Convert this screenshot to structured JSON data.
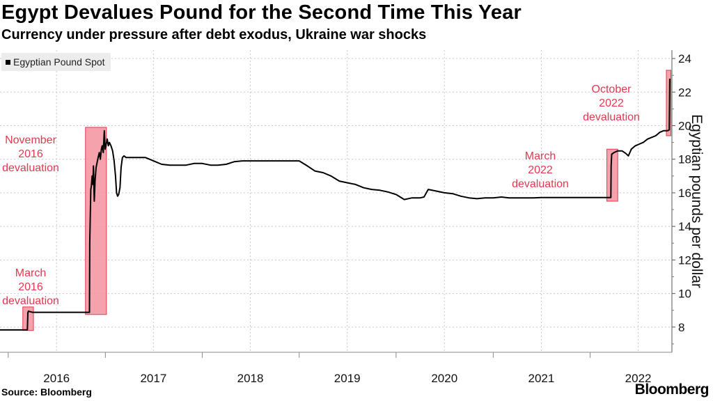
{
  "title": "Egypt Devalues Pound for the Second Time This Year",
  "subtitle": "Currency under pressure after debt exodus, Ukraine war shocks",
  "source": "Source: Bloomberg",
  "brand": "Bloomberg",
  "colors": {
    "line": "#000000",
    "highlight_fill": "#f4929e",
    "highlight_stroke": "#e0394f",
    "annotation": "#e0394f",
    "grid": "#c8c8c8",
    "legend_bg": "#ececec"
  },
  "chart_data": {
    "type": "line",
    "title": "Egypt Devalues Pound for the Second Time This Year",
    "subtitle": "Currency under pressure after debt exodus, Ukraine war shocks",
    "ylabel": "Egyptian pounds per dollar",
    "xlabel": "",
    "ylim": [
      6.5,
      24.5
    ],
    "xlim": [
      "2015-12-01",
      "2022-11-05"
    ],
    "y_ticks": [
      8,
      10,
      12,
      14,
      16,
      18,
      20,
      22,
      24
    ],
    "x_ticks": [
      {
        "label": "2016",
        "date": "2016-07-01"
      },
      {
        "label": "2017",
        "date": "2017-07-01"
      },
      {
        "label": "2018",
        "date": "2018-07-01"
      },
      {
        "label": "2019",
        "date": "2019-07-01"
      },
      {
        "label": "2020",
        "date": "2020-07-01"
      },
      {
        "label": "2021",
        "date": "2021-07-01"
      },
      {
        "label": "2022",
        "date": "2022-07-01"
      }
    ],
    "grid": true,
    "y_axis_position": "right",
    "legend": "top-left",
    "series": [
      {
        "name": "Egyptian Pound Spot",
        "points": [
          [
            "2015-12-01",
            7.83
          ],
          [
            "2016-02-01",
            7.83
          ],
          [
            "2016-03-13",
            7.83
          ],
          [
            "2016-03-15",
            8.85
          ],
          [
            "2016-03-17",
            8.95
          ],
          [
            "2016-04-01",
            8.88
          ],
          [
            "2016-05-01",
            8.88
          ],
          [
            "2016-06-01",
            8.88
          ],
          [
            "2016-07-01",
            8.88
          ],
          [
            "2016-08-01",
            8.88
          ],
          [
            "2016-09-01",
            8.88
          ],
          [
            "2016-10-01",
            8.88
          ],
          [
            "2016-11-02",
            8.88
          ],
          [
            "2016-11-03",
            13.0
          ],
          [
            "2016-11-07",
            16.2
          ],
          [
            "2016-11-09",
            16.4
          ],
          [
            "2016-11-12",
            17.0
          ],
          [
            "2016-11-15",
            16.5
          ],
          [
            "2016-11-17",
            17.6
          ],
          [
            "2016-11-20",
            15.5
          ],
          [
            "2016-11-23",
            16.7
          ],
          [
            "2016-11-27",
            17.5
          ],
          [
            "2016-12-02",
            17.9
          ],
          [
            "2016-12-06",
            18.2
          ],
          [
            "2016-12-09",
            18.4
          ],
          [
            "2016-12-13",
            18.0
          ],
          [
            "2016-12-17",
            18.6
          ],
          [
            "2016-12-20",
            18.8
          ],
          [
            "2016-12-24",
            18.4
          ],
          [
            "2016-12-28",
            19.7
          ],
          [
            "2016-12-31",
            18.6
          ],
          [
            "2017-01-04",
            18.9
          ],
          [
            "2017-01-08",
            19.2
          ],
          [
            "2017-01-12",
            18.8
          ],
          [
            "2017-01-16",
            19.0
          ],
          [
            "2017-01-22",
            18.8
          ],
          [
            "2017-01-28",
            18.5
          ],
          [
            "2017-02-03",
            17.9
          ],
          [
            "2017-02-08",
            17.0
          ],
          [
            "2017-02-12",
            16.0
          ],
          [
            "2017-02-16",
            15.8
          ],
          [
            "2017-02-20",
            15.9
          ],
          [
            "2017-02-25",
            16.3
          ],
          [
            "2017-03-01",
            17.5
          ],
          [
            "2017-03-06",
            18.1
          ],
          [
            "2017-03-12",
            18.2
          ],
          [
            "2017-03-20",
            18.1
          ],
          [
            "2017-04-01",
            18.1
          ],
          [
            "2017-05-01",
            18.1
          ],
          [
            "2017-06-01",
            18.1
          ],
          [
            "2017-07-01",
            17.9
          ],
          [
            "2017-08-01",
            17.7
          ],
          [
            "2017-09-01",
            17.65
          ],
          [
            "2017-10-01",
            17.65
          ],
          [
            "2017-11-01",
            17.65
          ],
          [
            "2017-12-01",
            17.75
          ],
          [
            "2018-01-01",
            17.75
          ],
          [
            "2018-02-01",
            17.65
          ],
          [
            "2018-03-01",
            17.65
          ],
          [
            "2018-04-01",
            17.7
          ],
          [
            "2018-05-01",
            17.85
          ],
          [
            "2018-06-01",
            17.9
          ],
          [
            "2018-07-01",
            17.9
          ],
          [
            "2018-08-01",
            17.9
          ],
          [
            "2018-09-01",
            17.9
          ],
          [
            "2018-10-01",
            17.9
          ],
          [
            "2018-11-01",
            17.9
          ],
          [
            "2018-12-01",
            17.9
          ],
          [
            "2019-01-01",
            17.9
          ],
          [
            "2019-02-01",
            17.6
          ],
          [
            "2019-03-01",
            17.3
          ],
          [
            "2019-04-01",
            17.2
          ],
          [
            "2019-05-01",
            17.0
          ],
          [
            "2019-06-01",
            16.7
          ],
          [
            "2019-07-01",
            16.6
          ],
          [
            "2019-08-01",
            16.5
          ],
          [
            "2019-09-01",
            16.3
          ],
          [
            "2019-10-01",
            16.2
          ],
          [
            "2019-11-01",
            16.15
          ],
          [
            "2019-12-01",
            16.05
          ],
          [
            "2020-01-01",
            15.9
          ],
          [
            "2020-02-01",
            15.6
          ],
          [
            "2020-03-01",
            15.7
          ],
          [
            "2020-04-01",
            15.7
          ],
          [
            "2020-04-15",
            15.75
          ],
          [
            "2020-05-01",
            16.2
          ],
          [
            "2020-06-01",
            16.1
          ],
          [
            "2020-07-01",
            16.0
          ],
          [
            "2020-08-01",
            15.95
          ],
          [
            "2020-09-01",
            15.8
          ],
          [
            "2020-10-01",
            15.7
          ],
          [
            "2020-11-01",
            15.65
          ],
          [
            "2020-12-01",
            15.7
          ],
          [
            "2021-01-01",
            15.7
          ],
          [
            "2021-02-01",
            15.75
          ],
          [
            "2021-03-01",
            15.7
          ],
          [
            "2021-04-01",
            15.7
          ],
          [
            "2021-05-01",
            15.7
          ],
          [
            "2021-06-01",
            15.7
          ],
          [
            "2021-07-01",
            15.72
          ],
          [
            "2021-08-01",
            15.72
          ],
          [
            "2021-09-01",
            15.72
          ],
          [
            "2021-10-01",
            15.72
          ],
          [
            "2021-11-01",
            15.72
          ],
          [
            "2021-12-01",
            15.72
          ],
          [
            "2022-01-01",
            15.72
          ],
          [
            "2022-02-01",
            15.72
          ],
          [
            "2022-03-20",
            15.72
          ],
          [
            "2022-03-21",
            17.6
          ],
          [
            "2022-03-23",
            18.3
          ],
          [
            "2022-04-01",
            18.4
          ],
          [
            "2022-04-15",
            18.5
          ],
          [
            "2022-05-01",
            18.5
          ],
          [
            "2022-05-15",
            18.35
          ],
          [
            "2022-05-25",
            18.2
          ],
          [
            "2022-06-05",
            18.6
          ],
          [
            "2022-06-20",
            18.8
          ],
          [
            "2022-07-05",
            18.9
          ],
          [
            "2022-07-20",
            19.0
          ],
          [
            "2022-08-05",
            19.2
          ],
          [
            "2022-08-20",
            19.3
          ],
          [
            "2022-09-05",
            19.4
          ],
          [
            "2022-09-20",
            19.6
          ],
          [
            "2022-10-05",
            19.7
          ],
          [
            "2022-10-20",
            19.7
          ],
          [
            "2022-10-26",
            19.75
          ],
          [
            "2022-10-27",
            21.5
          ],
          [
            "2022-10-28",
            22.8
          ]
        ]
      }
    ],
    "highlights": [
      {
        "label": "March 2016 devaluation",
        "start": "2016-02-25",
        "end": "2016-04-05",
        "y_range": [
          7.8,
          9.2
        ]
      },
      {
        "label": "November 2016 devaluation",
        "start": "2016-10-18",
        "end": "2017-01-05",
        "y_range": [
          8.75,
          19.9
        ]
      },
      {
        "label": "March 2022 devaluation",
        "start": "2022-03-05",
        "end": "2022-04-15",
        "y_range": [
          15.5,
          18.6
        ]
      },
      {
        "label": "October 2022 devaluation",
        "start": "2022-10-15",
        "end": "2022-11-01",
        "y_range": [
          19.4,
          23.3
        ]
      }
    ],
    "annotations": [
      {
        "lines": [
          "March",
          "2016",
          "devaluation"
        ]
      },
      {
        "lines": [
          "November",
          "2016",
          "devaluation"
        ]
      },
      {
        "lines": [
          "March",
          "2022",
          "devaluation"
        ]
      },
      {
        "lines": [
          "October",
          "2022",
          "devaluation"
        ]
      }
    ]
  }
}
